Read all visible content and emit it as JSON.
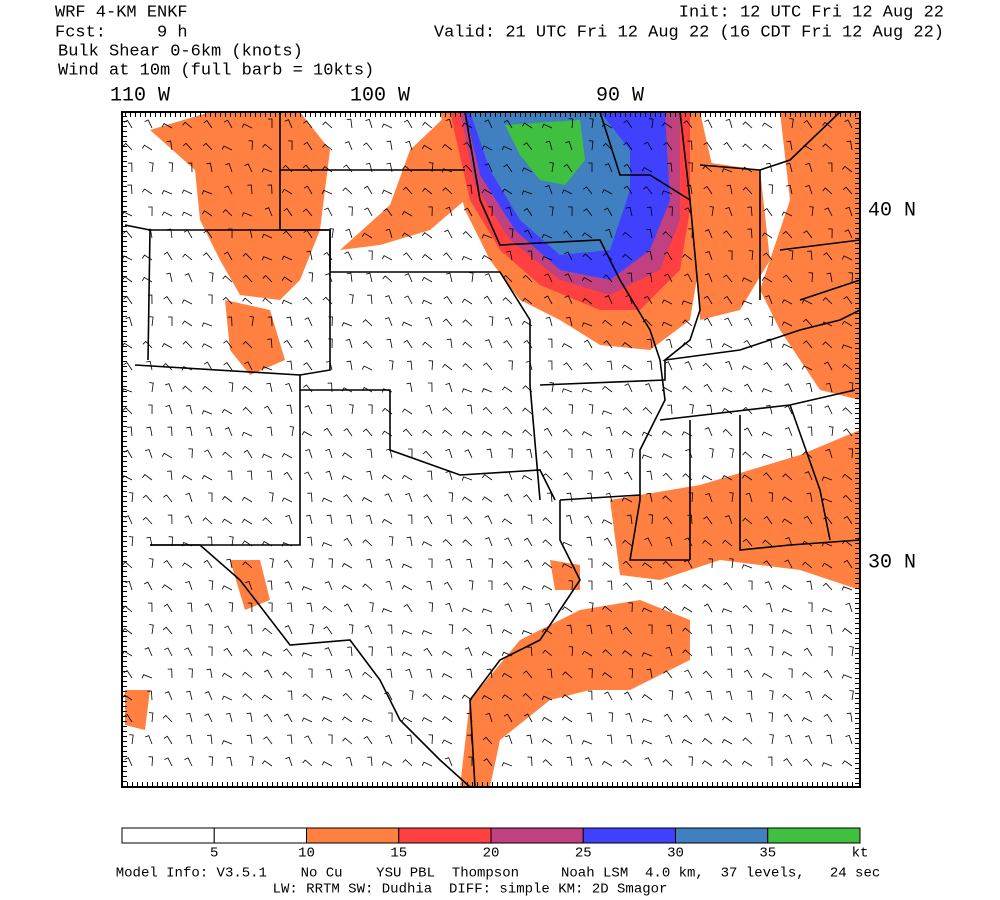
{
  "header": {
    "left": [
      "WRF 4-KM ENKF",
      "Fcst:     9 h",
      "Bulk Shear 0-6km (knots)",
      "Wind at 10m (full barb = 10kts)"
    ],
    "right": [
      "Init: 12 UTC Fri 12 Aug 22",
      "Valid: 21 UTC Fri 12 Aug 22 (16 CDT Fri 12 Aug 22)"
    ]
  },
  "map": {
    "longitude_labels": [
      "110 W",
      "100 W",
      "90 W"
    ],
    "latitude_labels": [
      "40 N",
      "30 N"
    ]
  },
  "colorbar": {
    "colors": [
      "#ffffff",
      "#ffffff",
      "#ff8040",
      "#ff4040",
      "#c04080",
      "#4040ff",
      "#4080c0",
      "#40c040"
    ],
    "labels": [
      "5",
      "10",
      "15",
      "20",
      "25",
      "30",
      "35",
      "kt"
    ]
  },
  "footer": [
    "Model Info: V3.5.1    No Cu    YSU PBL  Thompson     Noah LSM  4.0 km,  37 levels,   24 sec",
    "LW: RRTM SW: Dudhia  DIFF: simple KM: 2D Smagor"
  ]
}
